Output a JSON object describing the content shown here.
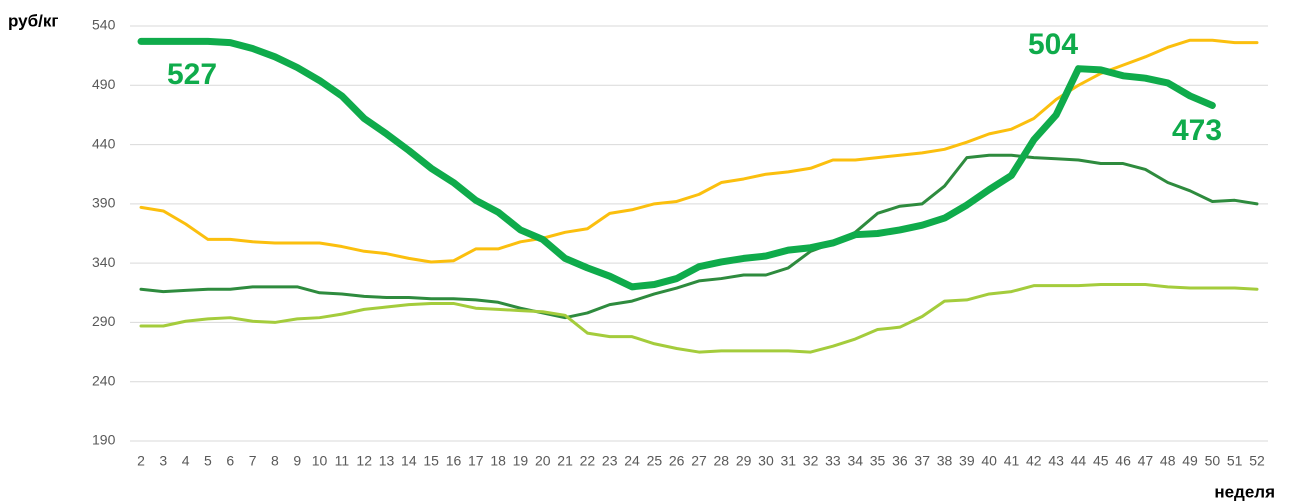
{
  "chart_data": {
    "type": "line",
    "y_label": "руб/кг",
    "x_label": "неделя",
    "categories": [
      "2",
      "3",
      "4",
      "5",
      "6",
      "7",
      "8",
      "9",
      "10",
      "11",
      "12",
      "13",
      "14",
      "15",
      "16",
      "17",
      "18",
      "19",
      "20",
      "21",
      "22",
      "23",
      "24",
      "25",
      "26",
      "27",
      "28",
      "29",
      "30",
      "31",
      "32",
      "33",
      "34",
      "35",
      "36",
      "37",
      "38",
      "39",
      "40",
      "41",
      "42",
      "43",
      "44",
      "45",
      "46",
      "47",
      "48",
      "49",
      "50",
      "51",
      "52"
    ],
    "series": [
      {
        "color": "#fbbf0e",
        "width": 3,
        "values": [
          387,
          384,
          373,
          360,
          360,
          358,
          357,
          357,
          357,
          354,
          350,
          348,
          344,
          341,
          342,
          352,
          352,
          358,
          361,
          366,
          369,
          382,
          385,
          390,
          392,
          398,
          408,
          411,
          415,
          417,
          420,
          427,
          427,
          429,
          431,
          433,
          436,
          442,
          449,
          453,
          462,
          478,
          490,
          500,
          507,
          514,
          522,
          528,
          528,
          526,
          526
        ]
      },
      {
        "color": "#2e8b3e",
        "width": 3,
        "values": [
          318,
          316,
          317,
          318,
          318,
          320,
          320,
          320,
          315,
          314,
          312,
          311,
          311,
          310,
          310,
          309,
          307,
          302,
          298,
          294,
          298,
          305,
          308,
          314,
          319,
          325,
          327,
          330,
          330,
          336,
          350,
          357,
          366,
          382,
          388,
          390,
          405,
          429,
          431,
          431,
          429,
          428,
          427,
          424,
          424,
          419,
          408,
          401,
          392,
          393,
          390
        ]
      },
      {
        "color": "#a4cc3c",
        "width": 3,
        "values": [
          287,
          287,
          291,
          293,
          294,
          291,
          290,
          293,
          294,
          297,
          301,
          303,
          305,
          306,
          306,
          302,
          301,
          300,
          299,
          296,
          281,
          278,
          278,
          272,
          268,
          265,
          266,
          266,
          266,
          266,
          265,
          270,
          276,
          284,
          286,
          295,
          308,
          309,
          314,
          316,
          321,
          321,
          321,
          322,
          322,
          322,
          320,
          319,
          319,
          319,
          318
        ]
      },
      {
        "color": "#0fab4b",
        "width": 7,
        "values": [
          527,
          527,
          527,
          527,
          526,
          521,
          514,
          505,
          494,
          481,
          462,
          449,
          435,
          420,
          408,
          393,
          383,
          368,
          360,
          344,
          336,
          329,
          320,
          322,
          327,
          337,
          341,
          344,
          346,
          351,
          353,
          357,
          364,
          365,
          368,
          372,
          378,
          389,
          402,
          414,
          444,
          465,
          504,
          503,
          498,
          496,
          492,
          481,
          473,
          null,
          null
        ]
      }
    ],
    "annotations": [
      "527",
      "504",
      "473"
    ],
    "ylim": [
      190,
      540
    ],
    "yticks": [
      190,
      240,
      290,
      340,
      390,
      440,
      490,
      540
    ],
    "grid": true
  }
}
